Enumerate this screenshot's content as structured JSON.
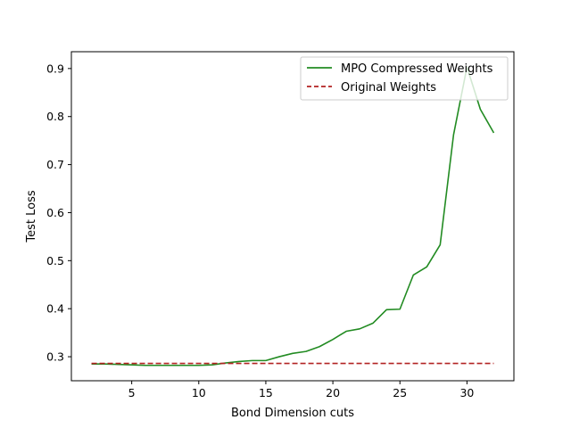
{
  "chart_data": {
    "type": "line",
    "title": "",
    "xlabel": "Bond Dimension cuts",
    "ylabel": "Test Loss",
    "xlim": [
      0.5,
      33.5
    ],
    "ylim": [
      0.25,
      0.935
    ],
    "xticks": [
      5,
      10,
      15,
      20,
      25,
      30
    ],
    "yticks": [
      0.3,
      0.4,
      0.5,
      0.6,
      0.7,
      0.8,
      0.9
    ],
    "x_tick_labels": [
      "5",
      "10",
      "15",
      "20",
      "25",
      "30"
    ],
    "y_tick_labels": [
      "0.3",
      "0.4",
      "0.5",
      "0.6",
      "0.7",
      "0.8",
      "0.9"
    ],
    "grid": false,
    "legend_position": "top-right",
    "series": [
      {
        "name": "MPO Compressed Weights",
        "color": "#228b22",
        "style": "solid",
        "x": [
          2,
          3,
          4,
          5,
          6,
          7,
          8,
          9,
          10,
          11,
          12,
          13,
          14,
          15,
          16,
          17,
          18,
          19,
          20,
          21,
          22,
          23,
          24,
          25,
          26,
          27,
          28,
          29,
          30,
          31,
          32
        ],
        "y": [
          0.285,
          0.285,
          0.284,
          0.283,
          0.282,
          0.282,
          0.282,
          0.282,
          0.282,
          0.283,
          0.287,
          0.29,
          0.292,
          0.292,
          0.3,
          0.307,
          0.311,
          0.321,
          0.336,
          0.353,
          0.358,
          0.37,
          0.398,
          0.399,
          0.47,
          0.487,
          0.533,
          0.762,
          0.903,
          0.815,
          0.766
        ]
      },
      {
        "name": "Original Weights",
        "color": "#b22222",
        "style": "dashed",
        "x": [
          2,
          32
        ],
        "y": [
          0.286,
          0.286
        ]
      }
    ]
  }
}
